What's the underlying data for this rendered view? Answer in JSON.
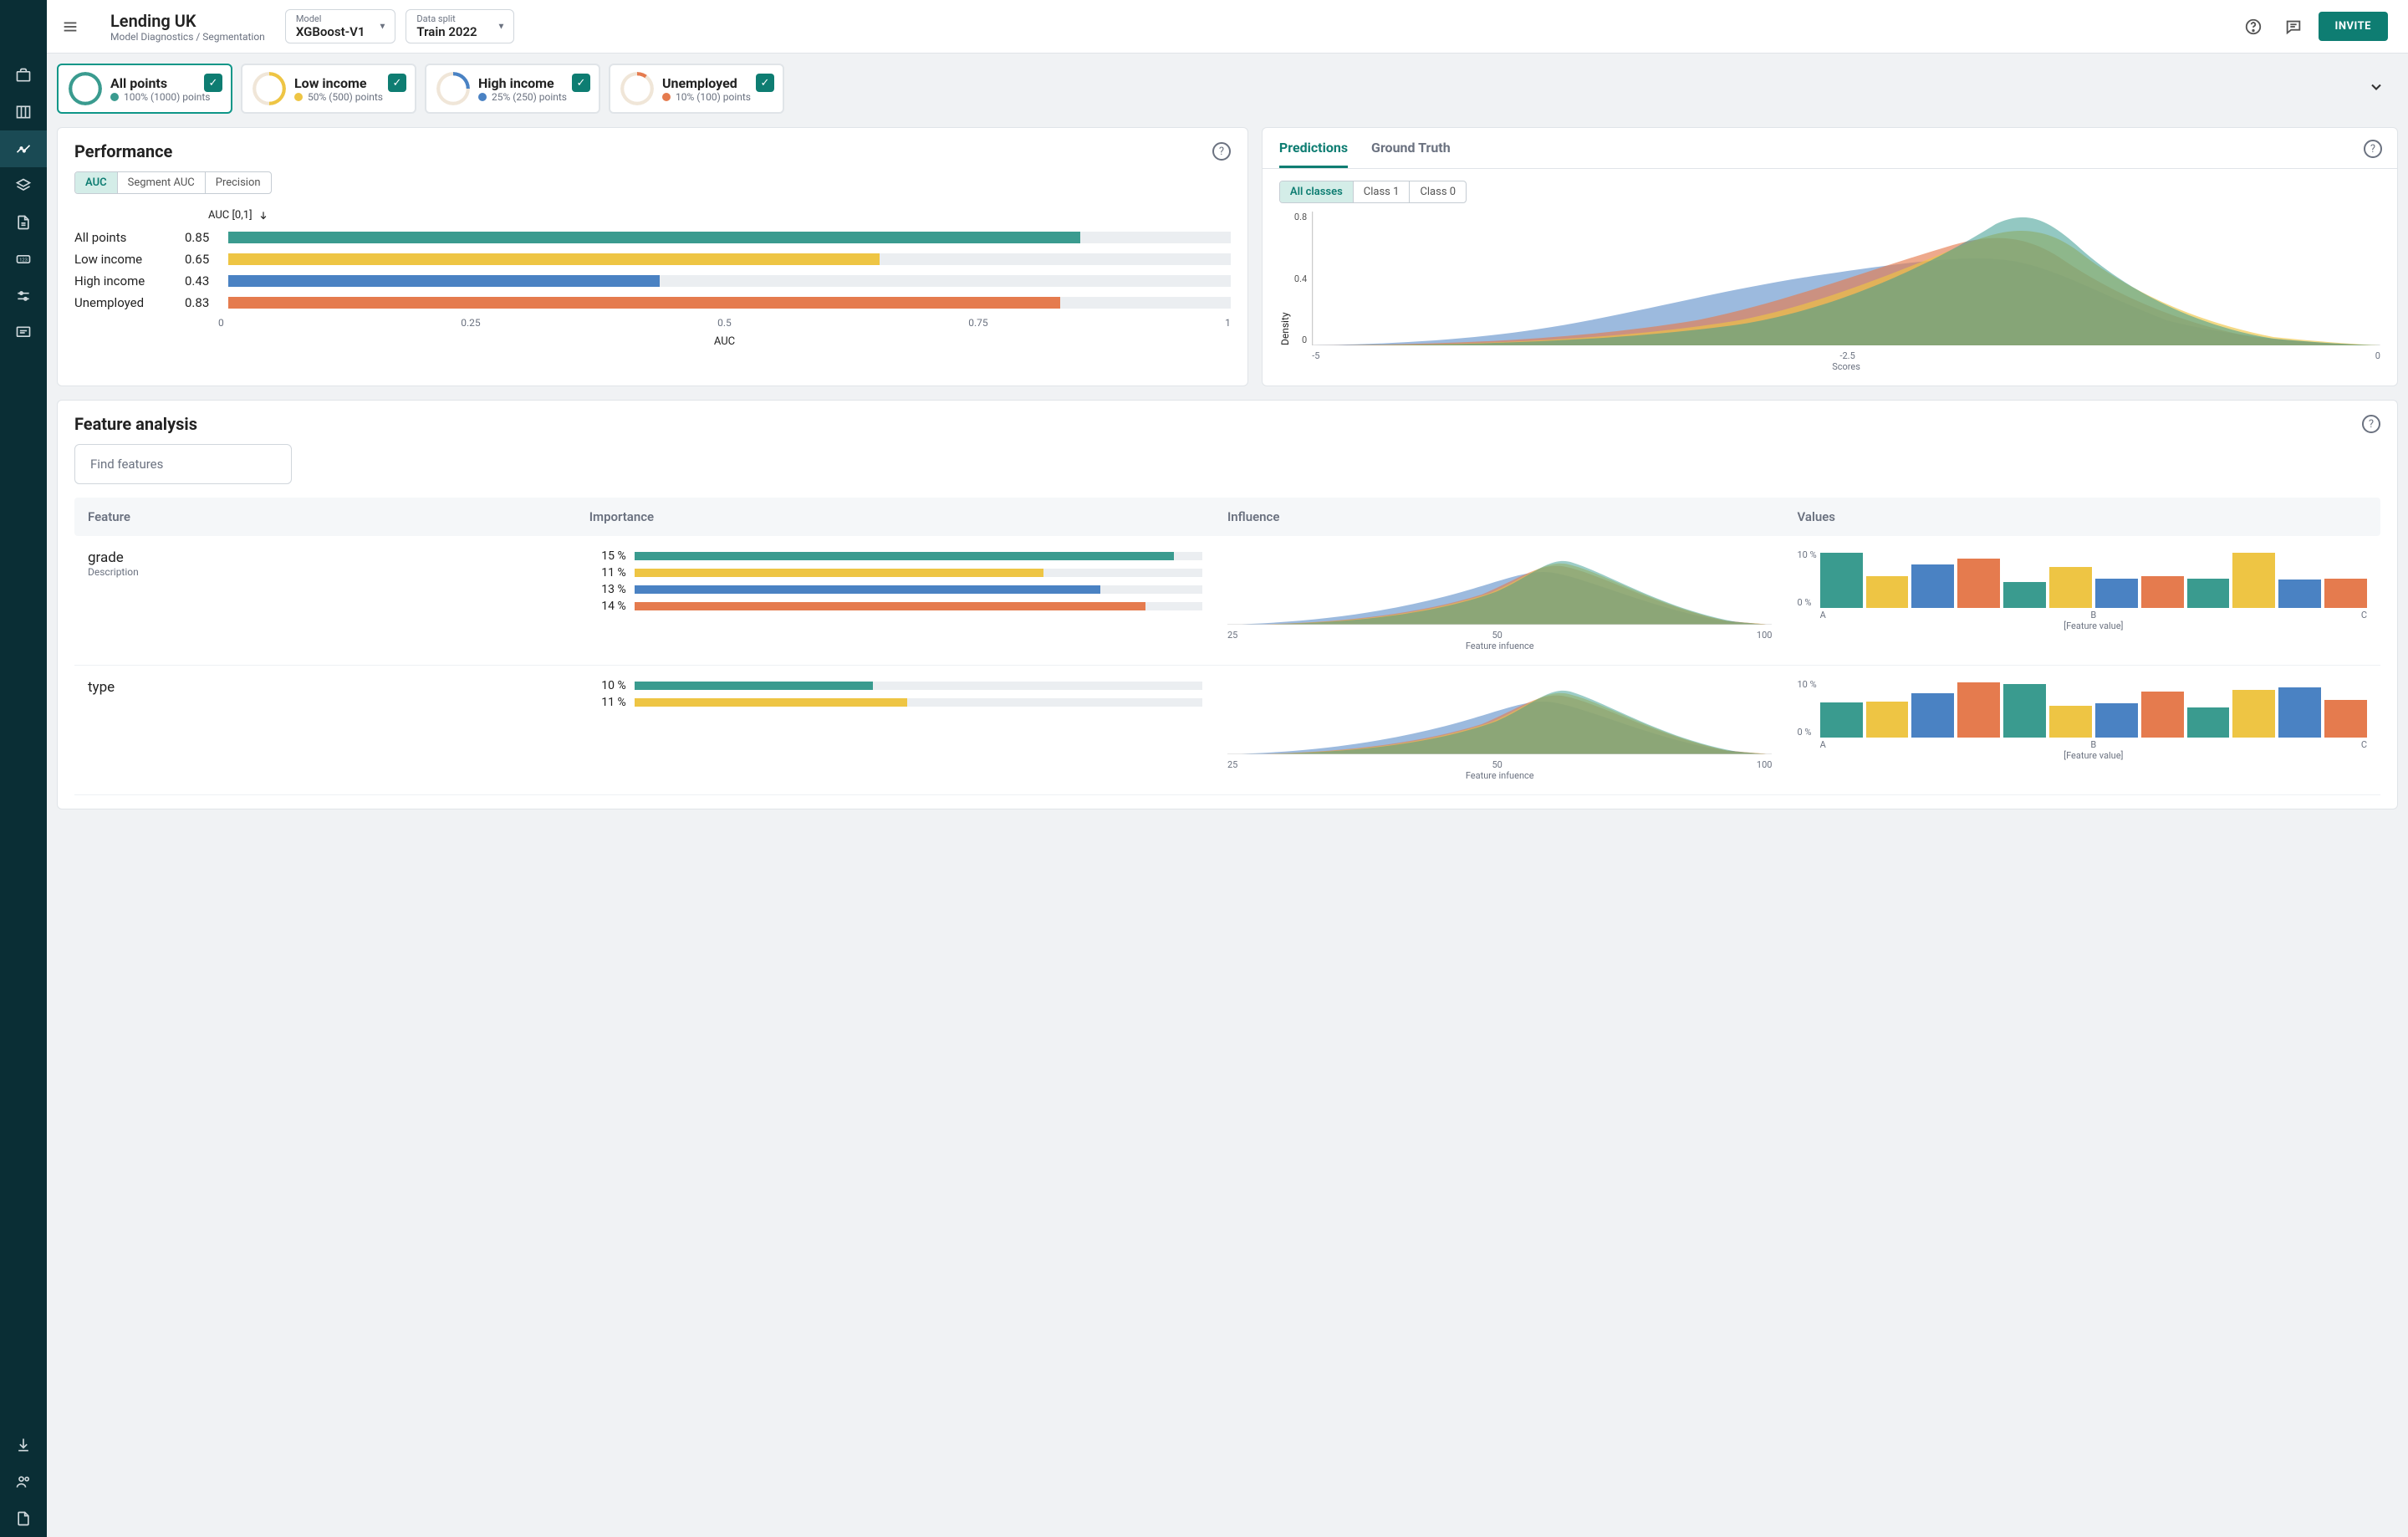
{
  "colors": {
    "green": "#3a9b8f",
    "yellow": "#eec544",
    "blue": "#4a82c3",
    "orange": "#e57b4e",
    "track": "#ebeef1",
    "teal_btn": "#0e7d72"
  },
  "header": {
    "title": "Lending UK",
    "breadcrumb": "Model Diagnostics / Segmentation",
    "model_label": "Model",
    "model_value": "XGBoost-V1",
    "split_label": "Data split",
    "split_value": "Train 2022",
    "invite": "INVITE"
  },
  "segments": [
    {
      "name": "All points",
      "sub": "100% (1000) points",
      "color": "#3a9b8f",
      "pct": 100,
      "selected": true
    },
    {
      "name": "Low income",
      "sub": "50% (500) points",
      "color": "#eec544",
      "pct": 50,
      "selected": false
    },
    {
      "name": "High income",
      "sub": "25% (250) points",
      "color": "#4a82c3",
      "pct": 25,
      "selected": false
    },
    {
      "name": "Unemployed",
      "sub": "10% (100) points",
      "color": "#e57b4e",
      "pct": 10,
      "selected": false
    }
  ],
  "performance": {
    "title": "Performance",
    "metrics": [
      "AUC",
      "Segment AUC",
      "Precision"
    ],
    "active_metric": "AUC",
    "auc_header": "AUC [0,1]",
    "bars": [
      {
        "label": "All points",
        "value": 0.85,
        "value_str": "0.85",
        "color": "#3a9b8f"
      },
      {
        "label": "Low income",
        "value": 0.65,
        "value_str": "0.65",
        "color": "#eec544"
      },
      {
        "label": "High income",
        "value": 0.43,
        "value_str": "0.43",
        "color": "#4a82c3"
      },
      {
        "label": "Unemployed",
        "value": 0.83,
        "value_str": "0.83",
        "color": "#e57b4e"
      }
    ],
    "ticks": [
      "0",
      "0.25",
      "0.5",
      "0.75",
      "1"
    ],
    "axis_label": "AUC"
  },
  "predictions": {
    "tabs": [
      "Predictions",
      "Ground Truth"
    ],
    "active_tab": "Predictions",
    "classes": [
      "All classes",
      "Class 1",
      "Class 0"
    ],
    "active_class": "All classes",
    "ylabel": "Density",
    "xlabel": "Scores",
    "yticks": [
      "0.8",
      "0.4",
      "0"
    ],
    "xticks": [
      "-5",
      "-2.5",
      "0"
    ]
  },
  "feature_analysis": {
    "title": "Feature analysis",
    "search_placeholder": "Find features",
    "columns": {
      "feature": "Feature",
      "importance": "Importance",
      "influence": "Influence",
      "values": "Values"
    },
    "influence_ticks": [
      "25",
      "50",
      "100"
    ],
    "influence_label": "Feature infuence",
    "values_ylabels": [
      "10 %",
      "0 %"
    ],
    "values_xticks": [
      "A",
      "B",
      "C"
    ],
    "values_xlabel": "[Feature value]",
    "features": [
      {
        "name": "grade",
        "desc": "Description",
        "importance": [
          {
            "pct": "15 %",
            "val": 0.95,
            "color": "#3a9b8f"
          },
          {
            "pct": "11 %",
            "val": 0.72,
            "color": "#eec544"
          },
          {
            "pct": "13 %",
            "val": 0.82,
            "color": "#4a82c3"
          },
          {
            "pct": "14 %",
            "val": 0.9,
            "color": "#e57b4e"
          }
        ],
        "values_bars": [
          {
            "h": 0.95,
            "c": "#3a9b8f"
          },
          {
            "h": 0.55,
            "c": "#eec544"
          },
          {
            "h": 0.75,
            "c": "#4a82c3"
          },
          {
            "h": 0.85,
            "c": "#e57b4e"
          },
          {
            "h": 0.45,
            "c": "#3a9b8f"
          },
          {
            "h": 0.7,
            "c": "#eec544"
          },
          {
            "h": 0.5,
            "c": "#4a82c3"
          },
          {
            "h": 0.55,
            "c": "#e57b4e"
          },
          {
            "h": 0.5,
            "c": "#3a9b8f"
          },
          {
            "h": 0.95,
            "c": "#eec544"
          },
          {
            "h": 0.48,
            "c": "#4a82c3"
          },
          {
            "h": 0.5,
            "c": "#e57b4e"
          }
        ]
      },
      {
        "name": "type",
        "desc": "",
        "importance": [
          {
            "pct": "10 %",
            "val": 0.42,
            "color": "#3a9b8f"
          },
          {
            "pct": "11 %",
            "val": 0.48,
            "color": "#eec544"
          }
        ],
        "values_bars": [
          {
            "h": 0.6,
            "c": "#3a9b8f"
          },
          {
            "h": 0.62,
            "c": "#eec544"
          },
          {
            "h": 0.76,
            "c": "#4a82c3"
          },
          {
            "h": 0.95,
            "c": "#e57b4e"
          },
          {
            "h": 0.92,
            "c": "#3a9b8f"
          },
          {
            "h": 0.55,
            "c": "#eec544"
          },
          {
            "h": 0.58,
            "c": "#4a82c3"
          },
          {
            "h": 0.78,
            "c": "#e57b4e"
          },
          {
            "h": 0.52,
            "c": "#3a9b8f"
          },
          {
            "h": 0.82,
            "c": "#eec544"
          },
          {
            "h": 0.86,
            "c": "#4a82c3"
          },
          {
            "h": 0.64,
            "c": "#e57b4e"
          }
        ]
      }
    ]
  }
}
